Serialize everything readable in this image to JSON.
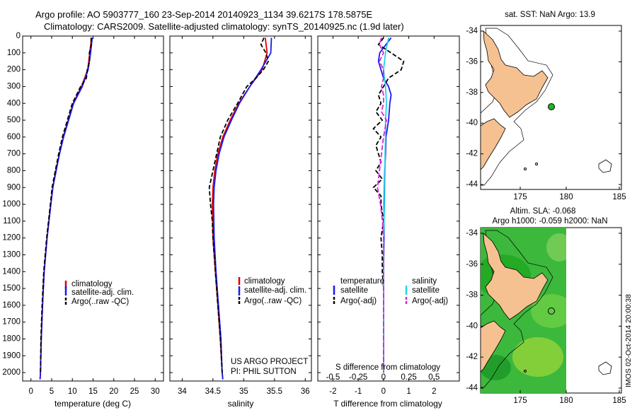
{
  "header": {
    "line1": "Argo profile: AO 5903777_160 23-Sep-2014 20140923_1134 39.6217S 178.5875E",
    "line2": "Climatology: CARS2009. Satellite-adjusted climatology: synTS_20140925.nc (1.9d later)"
  },
  "depth_axis": {
    "ticks": [
      "0",
      "100",
      "200",
      "300",
      "400",
      "500",
      "600",
      "700",
      "800",
      "900",
      "1000",
      "1100",
      "1200",
      "1300",
      "1400",
      "1500",
      "1600",
      "1700",
      "1800",
      "1900",
      "2000"
    ]
  },
  "colors": {
    "climatology": "#dd0000",
    "satellite": "#1a1aee",
    "argo": "#000000",
    "salinity_sat": "#22d5e8",
    "salinity_argo": "#dd22dd",
    "land": "#f5c191"
  },
  "chart_data": [
    {
      "type": "line",
      "name": "temperature",
      "xlabel": "temperature (deg C)",
      "ylabel": "",
      "xlim": [
        -2,
        32
      ],
      "ylim": [
        2050,
        0
      ],
      "xticks": [
        "0",
        "5",
        "10",
        "15",
        "20",
        "25",
        "30"
      ],
      "xtick_values": [
        0,
        5,
        10,
        15,
        20,
        25,
        30
      ],
      "legend": [
        "climatology",
        "satellite-adj. clim.",
        "Argo(..raw -QC)"
      ],
      "series": [
        {
          "name": "climatology",
          "color": "#dd0000",
          "dash": "",
          "depth": [
            10,
            100,
            200,
            300,
            400,
            500,
            600,
            700,
            800,
            900,
            1000,
            1200,
            1400,
            1600,
            1800,
            2000,
            2040
          ],
          "values": [
            14.6,
            14.2,
            13.7,
            12.2,
            10.2,
            9.0,
            7.8,
            6.9,
            6.0,
            5.3,
            4.8,
            3.9,
            3.2,
            2.8,
            2.5,
            2.3,
            2.2
          ]
        },
        {
          "name": "satellite-adj. clim.",
          "color": "#1a1aee",
          "dash": "",
          "depth": [
            10,
            100,
            200,
            300,
            400,
            500,
            600,
            700,
            800,
            900,
            1000,
            1200,
            1400,
            1600,
            1800,
            2000,
            2040
          ],
          "values": [
            14.8,
            14.4,
            13.8,
            12.4,
            10.3,
            9.1,
            7.9,
            6.9,
            6.1,
            5.3,
            4.8,
            3.9,
            3.2,
            2.8,
            2.5,
            2.3,
            2.2
          ]
        },
        {
          "name": "Argo(..raw -QC)",
          "color": "#000000",
          "dash": "6,3",
          "depth": [
            10,
            50,
            100,
            150,
            200,
            250,
            300,
            400,
            500,
            600,
            700,
            800,
            900,
            1000,
            1200,
            1400,
            1600,
            1800,
            2000
          ],
          "values": [
            14.5,
            14.6,
            14.1,
            14.2,
            13.6,
            13.4,
            12.0,
            10.0,
            8.8,
            7.6,
            6.7,
            5.9,
            5.1,
            4.7,
            3.8,
            3.1,
            2.7,
            2.4,
            2.3
          ]
        }
      ]
    },
    {
      "type": "line",
      "name": "salinity",
      "xlabel": "salinity",
      "ylabel": "",
      "xlim": [
        33.8,
        36.1
      ],
      "ylim": [
        2050,
        0
      ],
      "xticks": [
        "34",
        "34.5",
        "35",
        "35.5",
        "36"
      ],
      "xtick_values": [
        34,
        34.5,
        35,
        35.5,
        36
      ],
      "legend": [
        "climatology",
        "satellite-adj. clim.",
        "Argo(..raw -QC)"
      ],
      "annotation": [
        "US ARGO PROJECT",
        "PI: PHIL SUTTON"
      ],
      "series": [
        {
          "name": "climatology",
          "color": "#dd0000",
          "dash": "",
          "depth": [
            10,
            100,
            200,
            300,
            400,
            500,
            600,
            700,
            800,
            900,
            1000,
            1200,
            1400,
            1600,
            1800,
            2000,
            2040
          ],
          "values": [
            35.35,
            35.38,
            35.3,
            35.1,
            34.92,
            34.78,
            34.66,
            34.58,
            34.53,
            34.5,
            34.49,
            34.5,
            34.54,
            34.58,
            34.62,
            34.65,
            34.66
          ]
        },
        {
          "name": "satellite-adj. clim.",
          "color": "#1a1aee",
          "dash": "",
          "depth": [
            10,
            100,
            200,
            300,
            400,
            500,
            600,
            700,
            800,
            900,
            1000,
            1200,
            1400,
            1600,
            1800,
            2000,
            2040
          ],
          "values": [
            35.45,
            35.44,
            35.28,
            35.1,
            34.93,
            34.8,
            34.68,
            34.6,
            34.55,
            34.52,
            34.51,
            34.52,
            34.55,
            34.59,
            34.63,
            34.65,
            34.66
          ]
        },
        {
          "name": "Argo(..raw -QC)",
          "color": "#000000",
          "dash": "6,3",
          "depth": [
            10,
            50,
            100,
            150,
            200,
            250,
            300,
            400,
            500,
            600,
            700,
            800,
            900,
            1000,
            1100,
            1200,
            1400,
            1600,
            1800,
            2000
          ],
          "values": [
            35.33,
            35.28,
            35.36,
            35.4,
            35.32,
            35.2,
            35.05,
            34.9,
            34.74,
            34.62,
            34.56,
            34.5,
            34.44,
            34.46,
            34.49,
            34.5,
            34.54,
            34.58,
            34.62,
            34.65
          ]
        }
      ]
    },
    {
      "type": "line",
      "name": "difference",
      "xlabel": "T difference from climatology",
      "xlabel_top": "S difference from climatology",
      "xlim": [
        -2.6,
        3.0
      ],
      "ylim": [
        2050,
        0
      ],
      "xticks": [
        "-2",
        "-1",
        "0",
        "1",
        "2"
      ],
      "xtick_values": [
        -2,
        -1,
        0,
        1,
        2
      ],
      "sticks": [
        "-0.5",
        "-0.25",
        "0",
        "0.25",
        "0.5"
      ],
      "stick_values": [
        -0.5,
        -0.25,
        0,
        0.25,
        0.5
      ],
      "salinity_scale": 4,
      "legend_left": [
        "temperature",
        "satellite",
        "Argo(-adj)"
      ],
      "legend_right": [
        "salinity",
        "satellite",
        "Argo(-adj)"
      ],
      "series": [
        {
          "name": "temperature satellite",
          "color": "#1a1aee",
          "dash": "",
          "depth": [
            10,
            50,
            100,
            150,
            200,
            250,
            300,
            350,
            400,
            500,
            600,
            700,
            800,
            1000,
            1200,
            1400,
            1600,
            1800,
            2000
          ],
          "values": [
            0.3,
            0.1,
            -0.15,
            -0.2,
            -0.1,
            0.0,
            0.2,
            0.3,
            0.25,
            0.2,
            0.1,
            0.08,
            0.05,
            0.02,
            0.02,
            0.0,
            0.0,
            0.0,
            0.0
          ]
        },
        {
          "name": "temperature Argo(-adj)",
          "color": "#000000",
          "dash": "6,3",
          "depth": [
            10,
            50,
            100,
            150,
            200,
            250,
            300,
            350,
            400,
            450,
            500,
            550,
            600,
            650,
            700,
            750,
            800,
            850,
            900,
            950,
            1000,
            1100,
            1200,
            1300,
            1400,
            1500,
            1600,
            1800,
            2000
          ],
          "values": [
            0.0,
            -0.2,
            0.3,
            0.8,
            0.7,
            0.2,
            0.0,
            -0.2,
            -0.1,
            -0.3,
            -0.05,
            -0.4,
            -0.1,
            -0.3,
            -0.2,
            -0.1,
            -0.3,
            -0.05,
            -0.4,
            -0.1,
            -0.1,
            0.0,
            -0.1,
            -0.05,
            -0.05,
            0.0,
            0.0,
            0.0,
            0.0
          ]
        },
        {
          "name": "salinity satellite",
          "color": "#22d5e8",
          "dash": "",
          "depth": [
            10,
            100,
            200,
            300,
            400,
            500,
            600,
            700,
            800,
            1000,
            1200,
            1400,
            1600,
            1800,
            2000
          ],
          "values": [
            0.05,
            0.02,
            0.0,
            0.02,
            0.03,
            0.02,
            0.02,
            0.015,
            0.015,
            0.01,
            0.0,
            0.0,
            0.0,
            0.0,
            0.0
          ]
        },
        {
          "name": "salinity Argo(-adj)",
          "color": "#dd22dd",
          "dash": "7,3",
          "depth": [
            10,
            50,
            100,
            150,
            200,
            250,
            300,
            350,
            400,
            450,
            500,
            600,
            700,
            800,
            900,
            1000,
            1100,
            1200,
            1400,
            1600,
            1800,
            2000
          ],
          "values": [
            -0.02,
            -0.04,
            0.0,
            -0.04,
            0.0,
            0.0,
            -0.02,
            0.0,
            0.0,
            -0.02,
            0.03,
            0.0,
            -0.02,
            -0.04,
            -0.06,
            -0.03,
            -0.01,
            0.0,
            0.0,
            0.0,
            0.0,
            0.0
          ]
        }
      ]
    }
  ],
  "map_sst": {
    "title": "sat. SST: NaN Argo: 13.9",
    "lat_ticks": [
      "-34",
      "-36",
      "-38",
      "-40",
      "-42",
      "-44"
    ],
    "lon_ticks": [
      "175",
      "180",
      "185"
    ]
  },
  "map_sla": {
    "title1": "Altim. SLA: -0.068",
    "title2": "Argo h1000: -0.059 h2000: NaN",
    "lat_ticks": [
      "-34",
      "-36",
      "-38",
      "-40",
      "-42",
      "-44"
    ],
    "lon_ticks": [
      "175",
      "180",
      "185"
    ]
  },
  "credit": "IMOS 02-Oct-2014 20:00:38"
}
